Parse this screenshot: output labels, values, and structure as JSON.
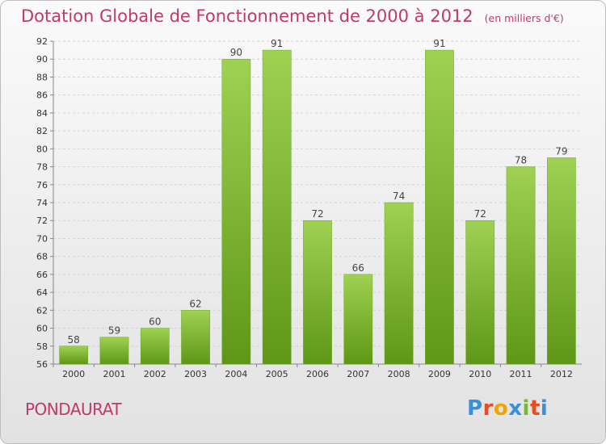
{
  "chart_data": {
    "type": "bar",
    "title": "Dotation Globale de Fonctionnement de 2000 à 2012",
    "subtitle": "(en milliers d'€)",
    "categories": [
      "2000",
      "2001",
      "2002",
      "2003",
      "2004",
      "2005",
      "2006",
      "2007",
      "2008",
      "2009",
      "2010",
      "2011",
      "2012"
    ],
    "values": [
      58,
      59,
      60,
      62,
      90,
      91,
      72,
      66,
      74,
      91,
      72,
      78,
      79
    ],
    "xlabel": "",
    "ylabel": "",
    "ylim": [
      56,
      92
    ],
    "yticks": [
      56,
      58,
      60,
      62,
      64,
      66,
      68,
      70,
      72,
      74,
      76,
      78,
      80,
      82,
      84,
      86,
      88,
      90,
      92
    ],
    "grid": true,
    "bar_color": "#7cb92e",
    "bar_color_light": "#9fd152",
    "bar_color_dark": "#5e9716"
  },
  "footer": {
    "location": "PONDAURAT",
    "brand": "Proxiti",
    "brand_colors": [
      "#3a8fd6",
      "#e94d1f",
      "#f2a300",
      "#3a8fd6",
      "#78b82a",
      "#e94d1f",
      "#3a8fd6"
    ]
  },
  "theme": {
    "title_color": "#bf3a6b"
  }
}
